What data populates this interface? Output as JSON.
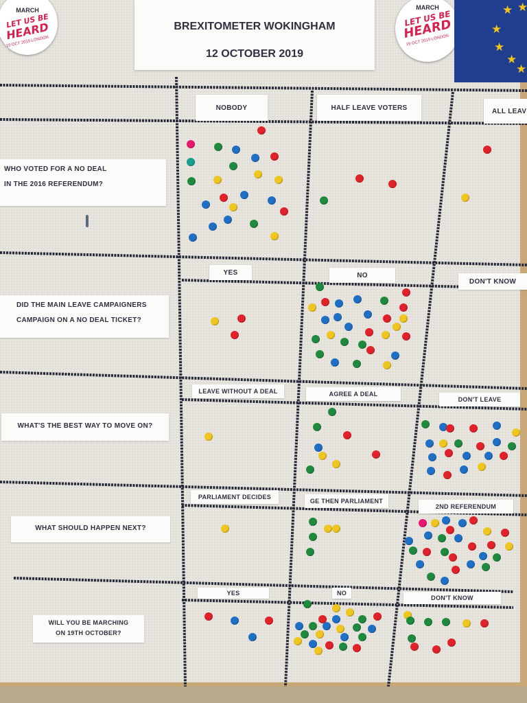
{
  "title": {
    "line1": "BREXITOMETER WOKINGHAM",
    "line2": "12 OCTOBER 2019"
  },
  "stickers": {
    "left": {
      "top": "MARCH",
      "line1": "LET US BE",
      "line2": "HEARD",
      "small": "19 OCT 2019 LONDON"
    },
    "right": {
      "top": "MARCH",
      "line1": "LET US BE",
      "line2": "HEARD",
      "small": "19 OCT 2019 LONDON"
    }
  },
  "colors": {
    "red": "#e0222b",
    "blue": "#1f6fc4",
    "green": "#1f8a3d",
    "yellow": "#efc520",
    "pink": "#e8186e",
    "teal": "#17a08f"
  },
  "questions": [
    {
      "lines": [
        "WHO VOTED FOR A NO DEAL",
        "IN THE 2016 REFERENDUM?"
      ],
      "options": [
        "NOBODY",
        "HALF LEAVE VOTERS",
        "ALL LEAVE"
      ]
    },
    {
      "lines": [
        "DID THE MAIN LEAVE CAMPAIGNERS",
        "CAMPAIGN ON A NO DEAL TICKET?"
      ],
      "options": [
        "YES",
        "NO",
        "DON'T KNOW"
      ]
    },
    {
      "lines": [
        "WHAT'S THE BEST WAY TO MOVE ON?"
      ],
      "options": [
        "LEAVE WITHOUT A DEAL",
        "AGREE A DEAL",
        "DON'T LEAVE"
      ]
    },
    {
      "lines": [
        "WHAT SHOULD HAPPEN NEXT?"
      ],
      "options": [
        "PARLIAMENT DECIDES",
        "GE THEN PARLIAMENT",
        "2ND REFERENDUM"
      ]
    },
    {
      "lines": [
        "WILL YOU BE MARCHING",
        "ON 19TH OCTOBER?"
      ],
      "options": [
        "YES",
        "NO",
        "DON'T KNOW"
      ]
    }
  ]
}
